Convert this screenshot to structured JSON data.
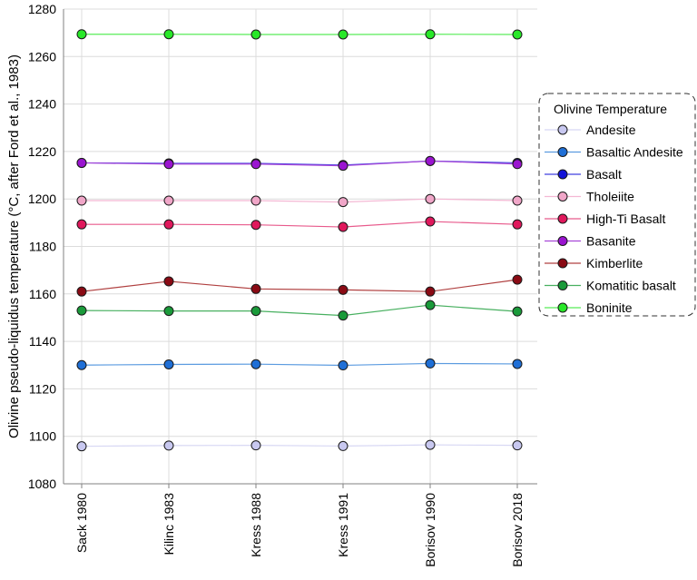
{
  "chart_data": {
    "type": "line",
    "categories": [
      "Sack 1980",
      "Kilinc 1983",
      "Kress 1988",
      "Kress 1991",
      "Borisov 1990",
      "Borisov 2018"
    ],
    "ylabel": "Olivine pseudo-liquidus temperature  (°C, after Ford et al., 1983)",
    "ylim": [
      1080,
      1280
    ],
    "yticks": [
      1080,
      1100,
      1120,
      1140,
      1160,
      1180,
      1200,
      1220,
      1240,
      1260,
      1280
    ],
    "grid": true,
    "legend": {
      "title": "Olivine Temperature",
      "position": "right"
    },
    "series": [
      {
        "name": "Andesite",
        "color": "#c8c8f0",
        "line": "#d8d8f4",
        "values": [
          1095.8,
          1096.1,
          1096.2,
          1095.9,
          1096.4,
          1096.2
        ]
      },
      {
        "name": "Basaltic Andesite",
        "color": "#1f6fd6",
        "line": "#5b9be0",
        "values": [
          1130.0,
          1130.3,
          1130.4,
          1129.9,
          1130.7,
          1130.5
        ]
      },
      {
        "name": "Basalt",
        "color": "#1414d8",
        "line": "#4040e0",
        "values": [
          1215.2,
          1215.0,
          1215.0,
          1214.3,
          1216.0,
          1215.2
        ]
      },
      {
        "name": "Tholeiite",
        "color": "#f0a6c8",
        "line": "#f4b8d4",
        "values": [
          1199.3,
          1199.3,
          1199.3,
          1198.7,
          1200.0,
          1199.3
        ]
      },
      {
        "name": "High-Ti Basalt",
        "color": "#e0185c",
        "line": "#e85a8c",
        "values": [
          1189.3,
          1189.3,
          1189.1,
          1188.2,
          1190.5,
          1189.3
        ]
      },
      {
        "name": "Basanite",
        "color": "#9a14d0",
        "line": "#a848d8",
        "values": [
          1215.2,
          1214.7,
          1214.7,
          1214.0,
          1216.0,
          1214.7
        ]
      },
      {
        "name": "Kimberlite",
        "color": "#8a0a14",
        "line": "#b04040",
        "values": [
          1161.0,
          1165.3,
          1162.1,
          1161.7,
          1161.0,
          1166.0
        ]
      },
      {
        "name": "Komatitic basalt",
        "color": "#1a9a3a",
        "line": "#48b060",
        "values": [
          1153.0,
          1152.8,
          1152.8,
          1150.9,
          1155.3,
          1152.6
        ]
      },
      {
        "name": "Boninite",
        "color": "#28e828",
        "line": "#58ec58",
        "values": [
          1269.4,
          1269.4,
          1269.3,
          1269.3,
          1269.4,
          1269.3
        ]
      }
    ]
  }
}
